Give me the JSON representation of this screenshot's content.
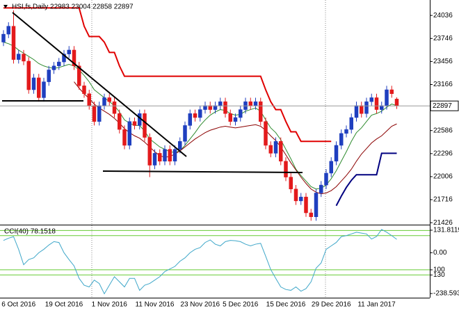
{
  "chart_data": [
    {
      "type": "candlestick",
      "title": "HSI,fs,Daily  22983 23004 22858 22897",
      "categories": [
        null,
        null,
        null,
        "6 Oct 2016",
        null,
        null,
        null,
        null,
        null,
        null,
        null,
        null,
        "19 Oct 2016",
        null,
        null,
        null,
        null,
        null,
        null,
        null,
        null,
        "1 Nov 2016",
        null,
        null,
        null,
        null,
        null,
        null,
        null,
        null,
        "11 Nov 2016",
        null,
        null,
        null,
        null,
        null,
        null,
        null,
        null,
        "23 Nov 2016",
        null,
        null,
        null,
        null,
        null,
        null,
        null,
        "5 Dec 2016",
        null,
        null,
        null,
        null,
        null,
        null,
        null,
        null,
        "15 Dec 2016",
        null,
        null,
        null,
        null,
        null,
        null,
        null,
        null,
        "29 Dec 2016",
        null,
        null,
        null,
        null,
        null,
        null,
        null,
        null,
        "11 Jan 2017",
        null,
        null,
        null,
        null
      ],
      "open": [
        23700,
        23800,
        23900,
        23480,
        23550,
        23460,
        23100,
        23250,
        23000,
        23200,
        23350,
        23400,
        23450,
        23550,
        23600,
        23400,
        23150,
        23050,
        22900,
        22700,
        22900,
        23000,
        22950,
        22800,
        22600,
        22400,
        22700,
        22650,
        22800,
        22500,
        22150,
        22300,
        22200,
        22350,
        22200,
        22350,
        22450,
        22650,
        22800,
        22750,
        22850,
        22900,
        22850,
        22900,
        22950,
        22800,
        22700,
        22750,
        22850,
        22950,
        22900,
        22950,
        22700,
        22400,
        22300,
        22450,
        22200,
        22000,
        21850,
        21700,
        21750,
        21550,
        21500,
        21800,
        21900,
        22050,
        22200,
        22400,
        22550,
        22600,
        22750,
        22900,
        22800,
        22950,
        23000,
        22850,
        22900,
        23100,
        22983
      ],
      "high": [
        23850,
        23950,
        24100,
        23600,
        23600,
        23510,
        23300,
        23300,
        23250,
        23400,
        23450,
        23500,
        23600,
        23650,
        23650,
        23450,
        23200,
        23100,
        22950,
        22950,
        23050,
        23050,
        23000,
        22850,
        22650,
        22750,
        22750,
        22850,
        22850,
        22550,
        22350,
        22350,
        22400,
        22400,
        22400,
        22500,
        22700,
        22850,
        22850,
        22900,
        22950,
        22950,
        22950,
        23000,
        23000,
        22850,
        22800,
        22900,
        23000,
        23000,
        23000,
        23000,
        22750,
        22450,
        22500,
        22500,
        22250,
        22050,
        21900,
        21800,
        21800,
        21600,
        21850,
        21950,
        22100,
        22250,
        22450,
        22600,
        22650,
        22800,
        22950,
        22950,
        23000,
        23050,
        23050,
        22950,
        23150,
        23150,
        23004
      ],
      "low": [
        23650,
        23750,
        23430,
        23430,
        23410,
        23050,
        23050,
        22950,
        22950,
        23150,
        23300,
        23350,
        23400,
        23500,
        23350,
        23100,
        23000,
        22850,
        22650,
        22650,
        22850,
        22900,
        22750,
        22550,
        22350,
        22350,
        22600,
        22600,
        22450,
        22000,
        22100,
        22150,
        22150,
        22150,
        22150,
        22300,
        22400,
        22600,
        22700,
        22700,
        22800,
        22800,
        22800,
        22850,
        22750,
        22650,
        22650,
        22700,
        22800,
        22850,
        22850,
        22650,
        22350,
        22250,
        22250,
        22150,
        21950,
        21800,
        21650,
        21650,
        21500,
        21450,
        21450,
        21750,
        21850,
        22000,
        22150,
        22350,
        22500,
        22550,
        22700,
        22750,
        22750,
        22900,
        22800,
        22800,
        22850,
        23000,
        22858
      ],
      "close": [
        23800,
        23900,
        23480,
        23550,
        23460,
        23100,
        23250,
        23000,
        23200,
        23350,
        23400,
        23450,
        23550,
        23600,
        23400,
        23150,
        23050,
        22900,
        22700,
        22900,
        23000,
        22950,
        22800,
        22600,
        22400,
        22700,
        22650,
        22800,
        22500,
        22150,
        22300,
        22200,
        22350,
        22200,
        22350,
        22450,
        22650,
        22800,
        22750,
        22850,
        22900,
        22850,
        22900,
        22950,
        22800,
        22700,
        22750,
        22850,
        22950,
        22900,
        22950,
        22700,
        22400,
        22300,
        22450,
        22200,
        22000,
        21850,
        21700,
        21750,
        21550,
        21500,
        21800,
        21900,
        22050,
        22200,
        22400,
        22550,
        22600,
        22750,
        22900,
        22800,
        22950,
        23000,
        22850,
        22900,
        23100,
        23050,
        22897
      ],
      "up_color": "#1f3fbf",
      "down_color": "#e31a1c",
      "series": [
        {
          "color": "#e00000",
          "width": 2,
          "values": [
            24130,
            24130,
            24130,
            24130,
            24130,
            24130,
            24130,
            24130,
            24130,
            24130,
            24130,
            24130,
            24130,
            24130,
            24130,
            24130,
            23900,
            23770,
            23770,
            23770,
            23700,
            23570,
            23570,
            23400,
            23270,
            23270,
            23270,
            23270,
            23270,
            23270,
            23270,
            23270,
            23270,
            23270,
            23270,
            23270,
            23270,
            23270,
            23270,
            23270,
            23270,
            23270,
            23270,
            23270,
            23270,
            23270,
            23270,
            23270,
            23270,
            23270,
            23270,
            23270,
            23100,
            22950,
            22850,
            22850,
            22700,
            22570,
            22570,
            22450,
            22450,
            22450,
            22450,
            22450,
            22450,
            22450,
            null,
            null,
            null,
            null,
            null,
            null,
            null,
            null,
            null,
            null,
            null,
            null,
            null
          ]
        },
        {
          "color": "#000080",
          "width": 2,
          "values": [
            null,
            null,
            null,
            null,
            null,
            null,
            null,
            null,
            null,
            null,
            null,
            null,
            null,
            null,
            null,
            null,
            null,
            null,
            null,
            null,
            null,
            null,
            null,
            null,
            null,
            null,
            null,
            null,
            null,
            null,
            null,
            null,
            null,
            null,
            null,
            null,
            null,
            null,
            null,
            null,
            null,
            null,
            null,
            null,
            null,
            null,
            null,
            null,
            null,
            null,
            null,
            null,
            null,
            null,
            null,
            null,
            null,
            null,
            null,
            null,
            null,
            null,
            null,
            null,
            null,
            null,
            21640,
            21760,
            21870,
            21960,
            22030,
            22030,
            22030,
            22030,
            22030,
            22300,
            22300,
            22300,
            22300
          ]
        },
        {
          "color": "#2e8b2e",
          "width": 1,
          "values": [
            23700,
            23680,
            23650,
            23600,
            23560,
            23520,
            23480,
            23430,
            23400,
            23380,
            23370,
            23380,
            23400,
            23420,
            23400,
            23350,
            23280,
            23200,
            23100,
            23050,
            23000,
            22950,
            22900,
            22820,
            22720,
            22680,
            22650,
            22650,
            22580,
            22480,
            22430,
            22380,
            22350,
            22320,
            22310,
            22330,
            22400,
            22480,
            22560,
            22650,
            22720,
            22780,
            22820,
            22850,
            22840,
            22800,
            22780,
            22790,
            22830,
            22850,
            22870,
            22830,
            22720,
            22620,
            22560,
            22470,
            22350,
            22230,
            22100,
            22020,
            21950,
            21880,
            21850,
            21860,
            21900,
            21980,
            22080,
            22200,
            22320,
            22450,
            22560,
            22620,
            22700,
            22780,
            22800,
            22830,
            22880,
            22920,
            22900
          ]
        },
        {
          "color": "#8b0000",
          "width": 1,
          "values": [
            null,
            null,
            null,
            null,
            null,
            null,
            null,
            null,
            null,
            null,
            null,
            null,
            null,
            null,
            23200,
            23120,
            23050,
            22990,
            22920,
            22870,
            22830,
            22790,
            22740,
            22680,
            22610,
            22560,
            22520,
            22490,
            22440,
            22380,
            22320,
            22270,
            22250,
            22260,
            22290,
            22330,
            22380,
            22430,
            22480,
            22520,
            22560,
            22590,
            22610,
            22630,
            22640,
            22630,
            22620,
            22630,
            22640,
            22650,
            22660,
            22640,
            22590,
            22520,
            22460,
            22380,
            22280,
            22180,
            22090,
            22000,
            21920,
            21850,
            21810,
            21790,
            21800,
            21830,
            21880,
            21950,
            22020,
            22100,
            22200,
            22290,
            22360,
            22430,
            22480,
            22520,
            22580,
            22640,
            22670
          ]
        }
      ],
      "current_price": 22897,
      "ylim": [
        21410,
        24230
      ],
      "yticks": [
        24036,
        23746,
        23456,
        23166,
        22586,
        22296,
        22006,
        21716,
        21426
      ]
    },
    {
      "type": "line",
      "title": "CCI(40) 78.1518",
      "series": [
        {
          "color": "#3fa7c9",
          "width": 1,
          "values": [
            72,
            85,
            94,
            20,
            -70,
            -40,
            -30,
            0,
            20,
            45,
            65,
            60,
            0,
            -40,
            -77,
            -150,
            -190,
            -200,
            -160,
            -180,
            -240,
            -190,
            -140,
            -170,
            -200,
            -150,
            -150,
            -220,
            -190,
            -180,
            -160,
            -140,
            -110,
            -95,
            -80,
            -50,
            -30,
            0,
            20,
            30,
            60,
            75,
            50,
            40,
            65,
            72,
            70,
            65,
            50,
            40,
            50,
            55,
            -20,
            -98,
            -150,
            -200,
            -215,
            -220,
            -200,
            -225,
            -210,
            -170,
            -90,
            -60,
            20,
            40,
            60,
            94,
            100,
            110,
            120,
            115,
            110,
            80,
            95,
            136,
            120,
            100,
            78.1518
          ]
        }
      ],
      "levels": [
        130,
        100,
        -100,
        -130
      ],
      "level_color": "#66cc33",
      "ylim": [
        -263,
        156
      ],
      "yticks": [
        131.8119,
        {
          "value": 0,
          "label": "0.00"
        },
        {
          "value": -100,
          "label": "100"
        },
        {
          "value": -130,
          "label": "130"
        },
        -238.593
      ]
    }
  ]
}
